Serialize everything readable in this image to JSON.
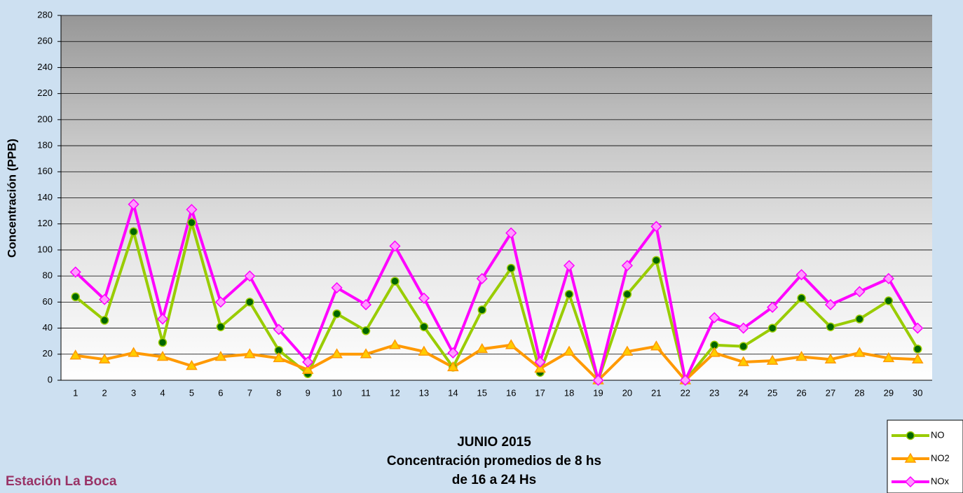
{
  "chart_data": {
    "type": "line",
    "title": "JUNIO 2015",
    "subtitle": [
      "Concentración promedios de 8 hs",
      "de 16 a 24 Hs"
    ],
    "annotations": [
      "Estación La Boca"
    ],
    "y_label": "Concentración  (PPB)",
    "categories": [
      "1",
      "2",
      "3",
      "4",
      "5",
      "6",
      "7",
      "8",
      "9",
      "10",
      "11",
      "12",
      "13",
      "14",
      "15",
      "16",
      "17",
      "18",
      "19",
      "20",
      "21",
      "22",
      "23",
      "24",
      "25",
      "26",
      "27",
      "28",
      "29",
      "30"
    ],
    "series": [
      {
        "name": "NO",
        "color": "#99cc00",
        "marker": "circle",
        "marker_color": "#006600",
        "values": [
          64,
          46,
          114,
          29,
          121,
          41,
          60,
          23,
          5,
          51,
          38,
          76,
          41,
          10,
          54,
          86,
          6,
          66,
          0,
          66,
          92,
          0,
          27,
          26,
          40,
          63,
          41,
          47,
          61,
          24
        ]
      },
      {
        "name": "NO2",
        "color": "#ff9900",
        "marker": "triangle",
        "marker_color": "#ffcc00",
        "values": [
          19,
          16,
          21,
          18,
          11,
          18,
          20,
          17,
          8,
          20,
          20,
          27,
          22,
          10,
          24,
          27,
          9,
          22,
          0,
          22,
          26,
          0,
          21,
          14,
          15,
          18,
          16,
          21,
          17,
          16
        ]
      },
      {
        "name": "NOx",
        "color": "#ff00ff",
        "marker": "diamond",
        "marker_color": "#ff99ff",
        "values": [
          83,
          62,
          135,
          47,
          131,
          60,
          80,
          39,
          14,
          71,
          58,
          103,
          63,
          21,
          78,
          113,
          14,
          88,
          0,
          88,
          118,
          0,
          48,
          40,
          56,
          81,
          58,
          68,
          78,
          40
        ]
      }
    ],
    "ylim": [
      0,
      280
    ],
    "yticks": [
      0,
      20,
      40,
      60,
      80,
      100,
      120,
      140,
      160,
      180,
      200,
      220,
      240,
      260,
      280
    ],
    "grid": true,
    "legend": "bottom-right"
  }
}
